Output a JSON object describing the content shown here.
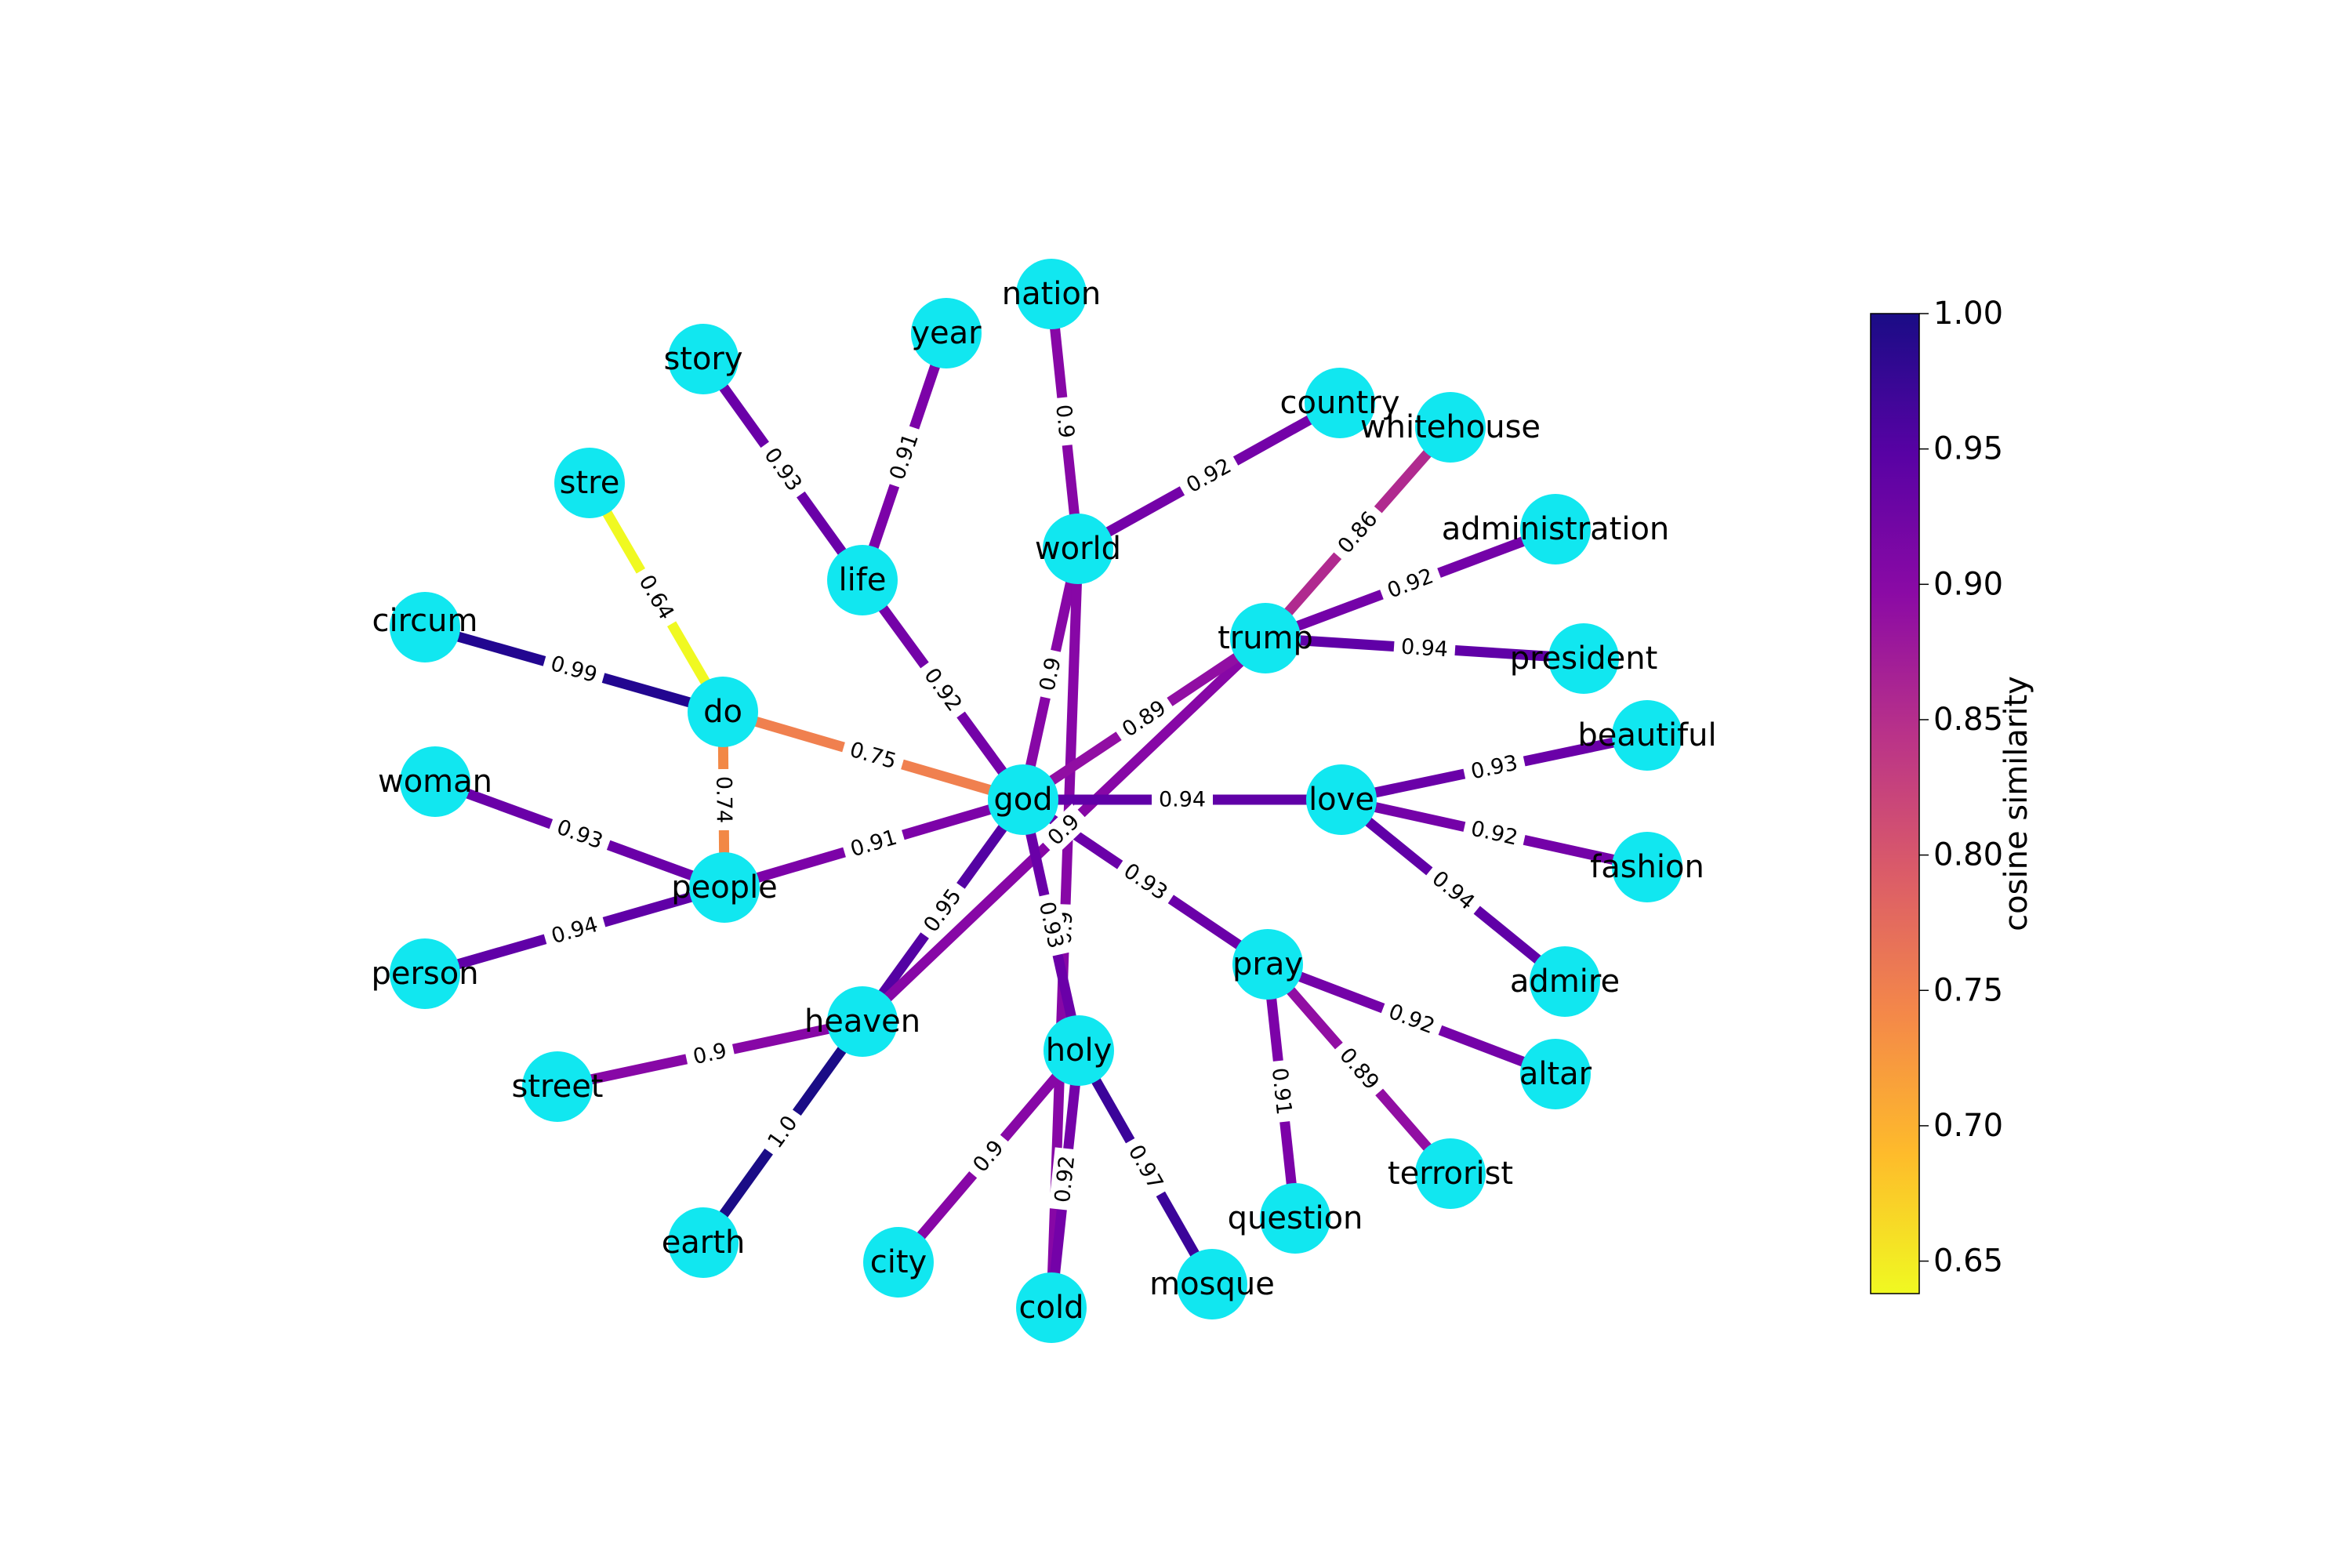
{
  "colorbar": {
    "title": "cosine similarity",
    "ticks": [
      "1.00",
      "0.95",
      "0.90",
      "0.85",
      "0.80",
      "0.75",
      "0.70",
      "0.65"
    ],
    "colors": [
      "#1a0c86",
      "#5802a4",
      "#8b0aa5",
      "#b93289",
      "#db5c68",
      "#f48849",
      "#febb2b",
      "#f0f921"
    ]
  },
  "node_color": "#11e7f0",
  "nodes": [
    "god",
    "do",
    "stre",
    "circum",
    "people",
    "woman",
    "person",
    "heaven",
    "street",
    "earth",
    "life",
    "story",
    "year",
    "world",
    "nation",
    "country",
    "trump",
    "whitehouse",
    "administration",
    "president",
    "love",
    "beautiful",
    "fashion",
    "admire",
    "pray",
    "altar",
    "terrorist",
    "question",
    "holy",
    "city",
    "cold",
    "mosque"
  ],
  "edges": [
    {
      "source": "god",
      "target": "do",
      "weight": 0.75,
      "label": "0.75",
      "color": "#f0804f"
    },
    {
      "source": "do",
      "target": "stre",
      "weight": 0.64,
      "label": "0.64",
      "color": "#f0f921"
    },
    {
      "source": "do",
      "target": "circum",
      "weight": 0.99,
      "label": "0.99",
      "color": "#220690"
    },
    {
      "source": "do",
      "target": "people",
      "weight": 0.74,
      "label": "0.74",
      "color": "#f28845"
    },
    {
      "source": "god",
      "target": "people",
      "weight": 0.91,
      "label": "0.91",
      "color": "#7c02a8"
    },
    {
      "source": "people",
      "target": "woman",
      "weight": 0.93,
      "label": "0.93",
      "color": "#6a00a8"
    },
    {
      "source": "people",
      "target": "person",
      "weight": 0.94,
      "label": "0.94",
      "color": "#6000a7"
    },
    {
      "source": "god",
      "target": "heaven",
      "weight": 0.95,
      "label": "0.95",
      "color": "#5402a3"
    },
    {
      "source": "heaven",
      "target": "street",
      "weight": 0.9,
      "label": "0.9",
      "color": "#8707a6"
    },
    {
      "source": "heaven",
      "target": "earth",
      "weight": 1.0,
      "label": "1.0",
      "color": "#1a0c86"
    },
    {
      "source": "heaven",
      "target": "trump",
      "weight": 0.9,
      "label": "0.9",
      "color": "#8707a6"
    },
    {
      "source": "god",
      "target": "life",
      "weight": 0.92,
      "label": "0.92",
      "color": "#7402a8"
    },
    {
      "source": "life",
      "target": "story",
      "weight": 0.93,
      "label": "0.93",
      "color": "#6a00a8"
    },
    {
      "source": "life",
      "target": "year",
      "weight": 0.91,
      "label": "0.91",
      "color": "#7c02a8"
    },
    {
      "source": "god",
      "target": "world",
      "weight": 0.9,
      "label": "0.9",
      "color": "#8707a6"
    },
    {
      "source": "world",
      "target": "nation",
      "weight": 0.9,
      "label": "0.9",
      "color": "#8707a6"
    },
    {
      "source": "world",
      "target": "country",
      "weight": 0.92,
      "label": "0.92",
      "color": "#7402a8"
    },
    {
      "source": "world",
      "target": "cold",
      "weight": 0.9,
      "label": "0.9",
      "color": "#8707a6"
    },
    {
      "source": "god",
      "target": "trump",
      "weight": 0.89,
      "label": "0.89",
      "color": "#910ea3"
    },
    {
      "source": "trump",
      "target": "whitehouse",
      "weight": 0.86,
      "label": "0.86",
      "color": "#b02a8f"
    },
    {
      "source": "trump",
      "target": "administration",
      "weight": 0.92,
      "label": "0.92",
      "color": "#7402a8"
    },
    {
      "source": "trump",
      "target": "president",
      "weight": 0.94,
      "label": "0.94",
      "color": "#6000a7"
    },
    {
      "source": "god",
      "target": "love",
      "weight": 0.94,
      "label": "0.94",
      "color": "#6000a7"
    },
    {
      "source": "love",
      "target": "beautiful",
      "weight": 0.93,
      "label": "0.93",
      "color": "#6a00a8"
    },
    {
      "source": "love",
      "target": "fashion",
      "weight": 0.92,
      "label": "0.92",
      "color": "#7402a8"
    },
    {
      "source": "love",
      "target": "admire",
      "weight": 0.94,
      "label": "0.94",
      "color": "#6000a7"
    },
    {
      "source": "god",
      "target": "pray",
      "weight": 0.93,
      "label": "0.93",
      "color": "#6a00a8"
    },
    {
      "source": "pray",
      "target": "altar",
      "weight": 0.92,
      "label": "0.92",
      "color": "#7402a8"
    },
    {
      "source": "pray",
      "target": "terrorist",
      "weight": 0.89,
      "label": "0.89",
      "color": "#910ea3"
    },
    {
      "source": "pray",
      "target": "question",
      "weight": 0.91,
      "label": "0.91",
      "color": "#7c02a8"
    },
    {
      "source": "god",
      "target": "holy",
      "weight": 0.93,
      "label": "0.93",
      "color": "#6a00a8"
    },
    {
      "source": "holy",
      "target": "city",
      "weight": 0.9,
      "label": "0.9",
      "color": "#8707a6"
    },
    {
      "source": "holy",
      "target": "cold",
      "weight": 0.92,
      "label": "0.92",
      "color": "#7402a8"
    },
    {
      "source": "holy",
      "target": "mosque",
      "weight": 0.97,
      "label": "0.97",
      "color": "#3b049a"
    }
  ]
}
